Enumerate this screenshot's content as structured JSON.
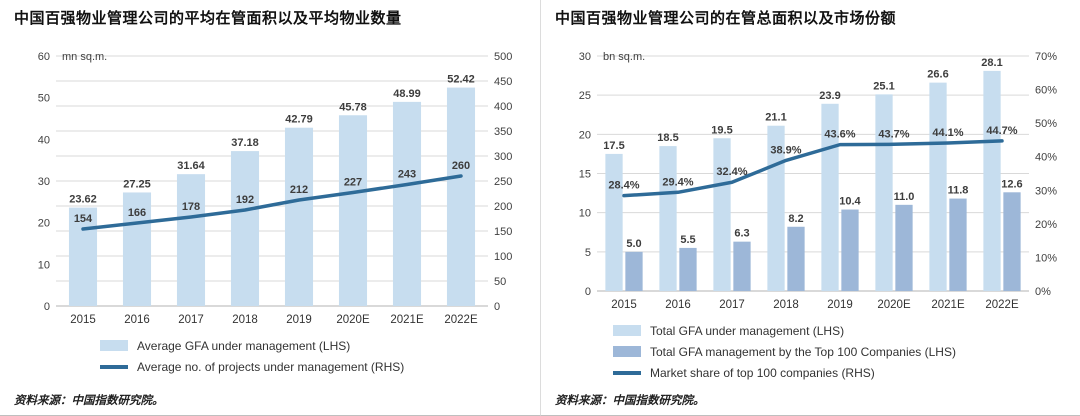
{
  "page": {
    "background": "#ffffff"
  },
  "colors": {
    "light_blue": "#c7ddef",
    "medium_blue": "#9db7d8",
    "dark_blue": "#2e6b98",
    "grid": "#d9d9d9",
    "axis_text": "#404040",
    "label_text": "#3d3d3d"
  },
  "chart_data": [
    {
      "type": "bar",
      "title": "中国百强物业管理公司的平均在管面积以及平均物业数量",
      "unit_label": "mn sq.m.",
      "categories": [
        "2015",
        "2016",
        "2017",
        "2018",
        "2019",
        "2020E",
        "2021E",
        "2022E"
      ],
      "series": [
        {
          "name": "Average GFA under management (LHS)",
          "kind": "bar",
          "axis": "left",
          "color": "light_blue",
          "values": [
            23.62,
            27.25,
            31.64,
            37.18,
            42.79,
            45.78,
            48.99,
            52.42
          ],
          "labels": [
            "23.62",
            "27.25",
            "31.64",
            "37.18",
            "42.79",
            "45.78",
            "48.99",
            "52.42"
          ]
        },
        {
          "name": "Average no. of projects under management (RHS)",
          "kind": "line",
          "axis": "right",
          "color": "dark_blue",
          "values": [
            154,
            166,
            178,
            192,
            212,
            227,
            243,
            260
          ],
          "labels": [
            "154",
            "166",
            "178",
            "192",
            "212",
            "227",
            "243",
            "260"
          ]
        }
      ],
      "left_axis": {
        "min": 0,
        "max": 60,
        "step": 10
      },
      "right_axis": {
        "min": 0,
        "max": 500,
        "step": 50
      },
      "grid_axis": "right",
      "grid": true,
      "legend_position": "bottom",
      "source": "资料来源：中国指数研究院。"
    },
    {
      "type": "bar",
      "title": "中国百强物业管理公司的在管总面积以及市场份额",
      "unit_label": "bn sq.m.",
      "categories": [
        "2015",
        "2016",
        "2017",
        "2018",
        "2019",
        "2020E",
        "2021E",
        "2022E"
      ],
      "series": [
        {
          "name": "Total GFA under management (LHS)",
          "kind": "bar",
          "axis": "left",
          "color": "light_blue",
          "values": [
            17.5,
            18.5,
            19.5,
            21.1,
            23.9,
            25.1,
            26.6,
            28.1
          ],
          "labels": [
            "17.5",
            "18.5",
            "19.5",
            "21.1",
            "23.9",
            "25.1",
            "26.6",
            "28.1"
          ]
        },
        {
          "name": "Total GFA management by the Top 100 Companies (LHS)",
          "kind": "bar",
          "axis": "left",
          "color": "medium_blue",
          "values": [
            5.0,
            5.5,
            6.3,
            8.2,
            10.4,
            11.0,
            11.8,
            12.6
          ],
          "labels": [
            "5.0",
            "5.5",
            "6.3",
            "8.2",
            "10.4",
            "11.0",
            "11.8",
            "12.6"
          ]
        },
        {
          "name": "Market share of top 100 companies (RHS)",
          "kind": "line",
          "axis": "right",
          "color": "dark_blue",
          "values": [
            28.4,
            29.4,
            32.4,
            38.9,
            43.6,
            43.7,
            44.1,
            44.7
          ],
          "labels": [
            "28.4%",
            "29.4%",
            "32.4%",
            "38.9%",
            "43.6%",
            "43.7%",
            "44.1%",
            "44.7%"
          ]
        }
      ],
      "left_axis": {
        "min": 0,
        "max": 30,
        "step": 5
      },
      "right_axis": {
        "min": 0,
        "max": 70,
        "step": 10,
        "suffix": "%"
      },
      "grid_axis": "left",
      "grid": true,
      "legend_position": "bottom",
      "source": "资料来源：中国指数研究院。"
    }
  ]
}
